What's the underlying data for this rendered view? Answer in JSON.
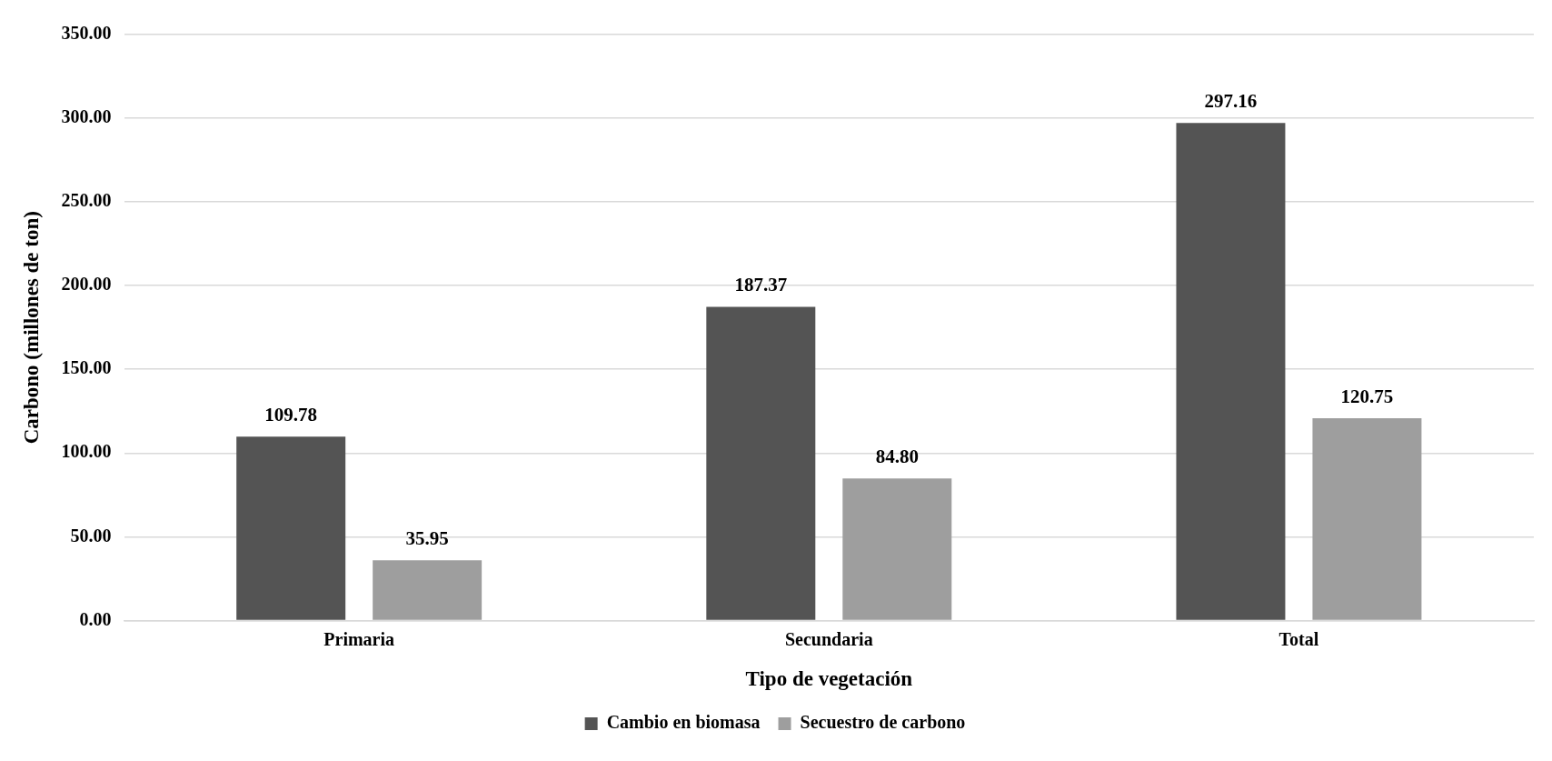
{
  "chart_data": {
    "type": "bar",
    "xlabel": "Tipo de vegetación",
    "ylabel": "Carbono (millones de ton)",
    "categories": [
      "Primaria",
      "Secundaria",
      "Total"
    ],
    "series": [
      {
        "name": "Cambio en biomasa",
        "color": "#545454",
        "values": [
          109.78,
          187.37,
          297.16
        ],
        "value_labels": [
          "109.78",
          "187.37",
          "297.16"
        ]
      },
      {
        "name": "Secuestro de carbono",
        "color": "#9e9e9e",
        "values": [
          35.95,
          84.8,
          120.75
        ],
        "value_labels": [
          "35.95",
          "84.80",
          "120.75"
        ]
      }
    ],
    "ylim": [
      0,
      350
    ],
    "yticks": [
      {
        "value": 0,
        "label": "0.00"
      },
      {
        "value": 50,
        "label": "50.00"
      },
      {
        "value": 100,
        "label": "100.00"
      },
      {
        "value": 150,
        "label": "150.00"
      },
      {
        "value": 200,
        "label": "200.00"
      },
      {
        "value": 250,
        "label": "250.00"
      },
      {
        "value": 300,
        "label": "300.00"
      },
      {
        "value": 350,
        "label": "350.00"
      }
    ],
    "grid": "y",
    "legend": "bottom"
  }
}
